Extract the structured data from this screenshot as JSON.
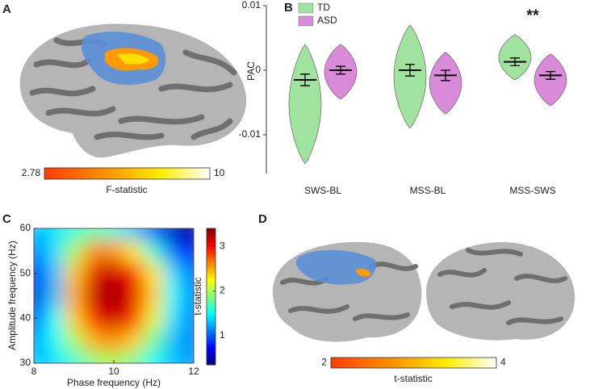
{
  "chart_data": [
    {
      "type": "image",
      "panel": "A",
      "colorbar": {
        "label": "F-statistic",
        "lim": [
          2.78,
          10
        ],
        "ticks": [
          2.78,
          10
        ]
      }
    },
    {
      "type": "violin",
      "panel": "B",
      "ylabel": "PAC",
      "annotation": "**",
      "categories": [
        "SWS-BL",
        "MSS-BL",
        "MSS-SWS"
      ],
      "series": [
        {
          "name": "TD",
          "color": "#9fe39f",
          "values": [
            -0.0015,
            0.0,
            0.0013
          ],
          "errors": [
            0.0009,
            0.0009,
            0.0006
          ],
          "mins": [
            -0.0145,
            -0.009,
            -0.0015
          ],
          "maxs": [
            0.004,
            0.007,
            0.0055
          ]
        },
        {
          "name": "ASD",
          "color": "#d98ad9",
          "values": [
            0.0,
            -0.0008,
            -0.0008
          ],
          "errors": [
            0.0006,
            0.0008,
            0.0006
          ],
          "mins": [
            -0.0045,
            -0.0068,
            -0.0055
          ],
          "maxs": [
            0.004,
            0.0028,
            0.0025
          ]
        }
      ],
      "ylim": [
        -0.016,
        0.01
      ],
      "yticks": [
        -0.01,
        0,
        0.01
      ],
      "legend": "upper left"
    },
    {
      "type": "heatmap",
      "panel": "C",
      "xlabel": "Phase frequency (Hz)",
      "ylabel": "Amplitude frequency (Hz)",
      "x": [
        8,
        8.5,
        9,
        9.5,
        10,
        10.5,
        11,
        11.5,
        12
      ],
      "y": [
        60,
        55,
        50,
        45,
        40,
        35,
        30
      ],
      "z": [
        [
          1.3,
          1.4,
          1.6,
          1.7,
          1.6,
          1.3,
          0.9,
          0.5,
          0.3
        ],
        [
          1.1,
          1.4,
          2.0,
          2.6,
          2.6,
          2.3,
          1.6,
          1.0,
          0.7
        ],
        [
          0.7,
          1.3,
          2.4,
          3.1,
          3.2,
          3.0,
          2.3,
          1.4,
          1.0
        ],
        [
          0.6,
          1.3,
          2.5,
          3.2,
          3.3,
          3.1,
          2.4,
          1.5,
          1.1
        ],
        [
          0.9,
          1.5,
          2.4,
          3.0,
          3.2,
          2.9,
          2.2,
          1.4,
          1.1
        ],
        [
          1.2,
          1.5,
          2.0,
          2.5,
          2.6,
          2.4,
          1.8,
          1.3,
          1.1
        ],
        [
          1.3,
          1.4,
          1.6,
          1.9,
          2.0,
          1.8,
          1.5,
          1.3,
          1.2
        ]
      ],
      "xlim": [
        8,
        12
      ],
      "xticks": [
        8,
        10,
        12
      ],
      "ylim": [
        30,
        60
      ],
      "yticks": [
        30,
        40,
        50,
        60
      ],
      "colorbar": {
        "label": "t-statistic",
        "lim": [
          0.35,
          3.4
        ],
        "ticks": [
          1,
          2,
          3
        ]
      }
    },
    {
      "type": "image",
      "panel": "D",
      "colorbar": {
        "label": "t-statistic",
        "lim": [
          2,
          4
        ],
        "ticks": [
          2,
          4
        ]
      }
    }
  ]
}
